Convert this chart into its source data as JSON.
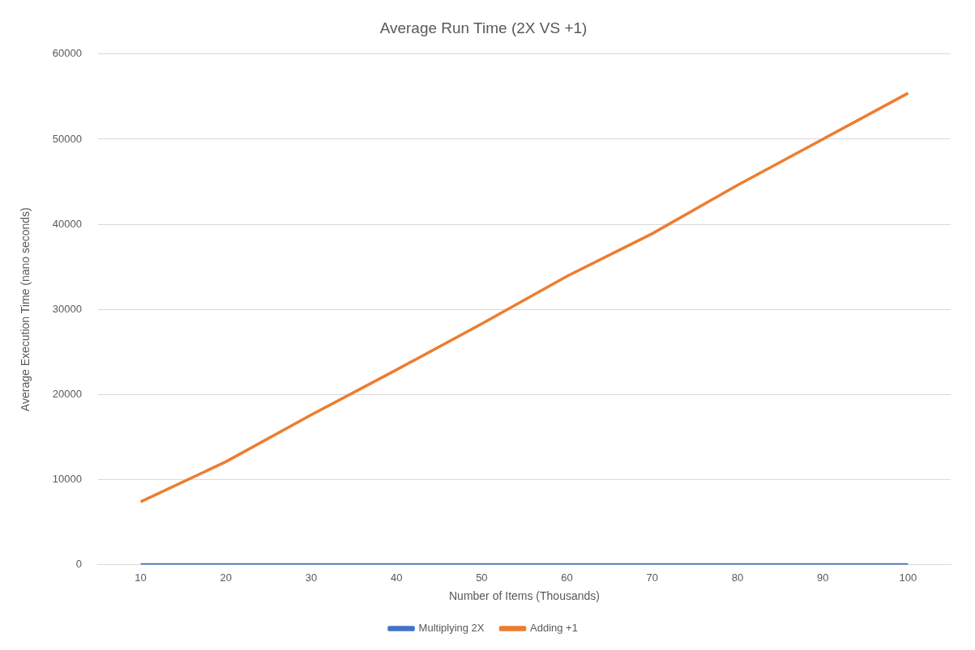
{
  "chart_data": {
    "type": "line",
    "title": "Average Run Time (2X VS +1)",
    "xlabel": "Number of Items (Thousands)",
    "ylabel": "Average Execution Time (nano seconds)",
    "categories": [
      "10",
      "20",
      "30",
      "40",
      "50",
      "60",
      "70",
      "80",
      "90",
      "100"
    ],
    "series": [
      {
        "name": "Multiplying 2X",
        "color": "#4472c4",
        "values": [
          0,
          0,
          0,
          0,
          0,
          0,
          0,
          0,
          0,
          0
        ]
      },
      {
        "name": "Adding +1",
        "color": "#ed7d31",
        "values": [
          7400,
          12100,
          17600,
          22900,
          28300,
          33900,
          38900,
          44600,
          50000,
          55400
        ]
      }
    ],
    "ylim": [
      0,
      60000
    ],
    "yticks": [
      0,
      10000,
      20000,
      30000,
      40000,
      50000,
      60000
    ],
    "grid": "y",
    "legend": "bottom",
    "marker": "none",
    "line_style": "solid"
  }
}
